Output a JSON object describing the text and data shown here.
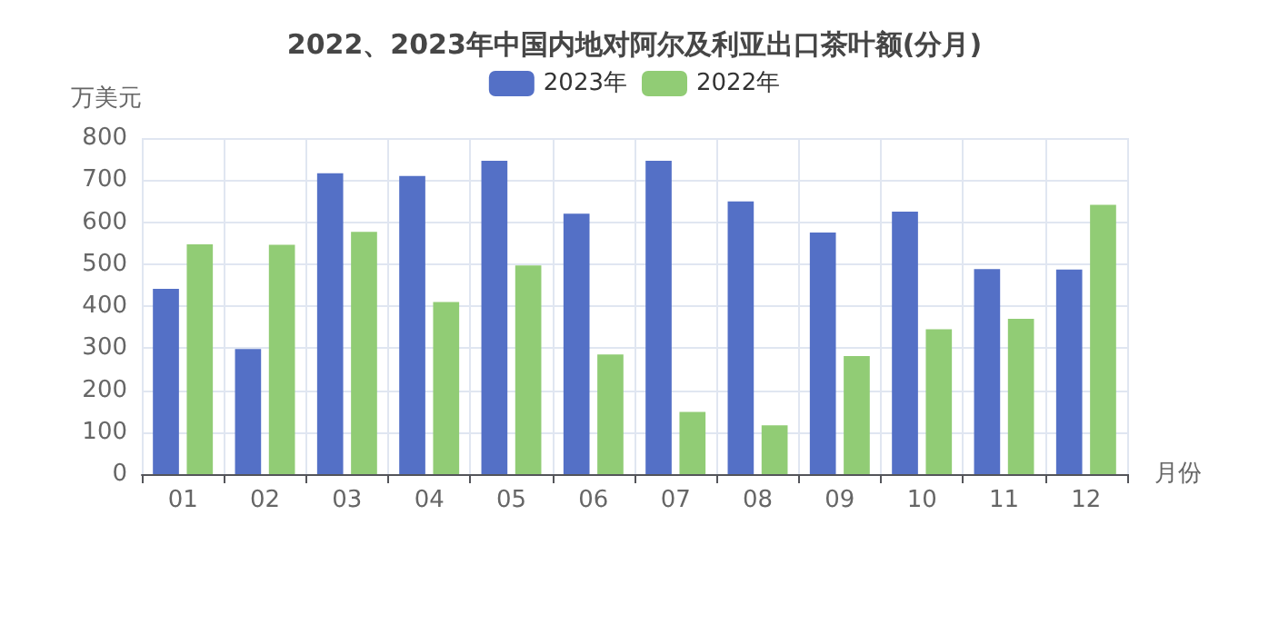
{
  "chart_data": {
    "type": "bar",
    "title": "2022、2023年中国内地对阿尔及利亚出口茶叶额(分月)",
    "xlabel": "月份",
    "ylabel": "万美元",
    "categories": [
      "01",
      "02",
      "03",
      "04",
      "05",
      "06",
      "07",
      "08",
      "09",
      "10",
      "11",
      "12"
    ],
    "series": [
      {
        "name": "2023年",
        "color": "#5470c6",
        "values": [
          441,
          298,
          716,
          710,
          746,
          620,
          746,
          649,
          575,
          625,
          488,
          487
        ]
      },
      {
        "name": "2022年",
        "color": "#91cc75",
        "values": [
          547,
          546,
          577,
          410,
          497,
          285,
          148,
          116,
          281,
          345,
          370,
          641
        ]
      }
    ],
    "ylim": [
      0,
      800
    ],
    "yticks": [
      0,
      100,
      200,
      300,
      400,
      500,
      600,
      700,
      800
    ],
    "grid": true,
    "legend": "top"
  }
}
